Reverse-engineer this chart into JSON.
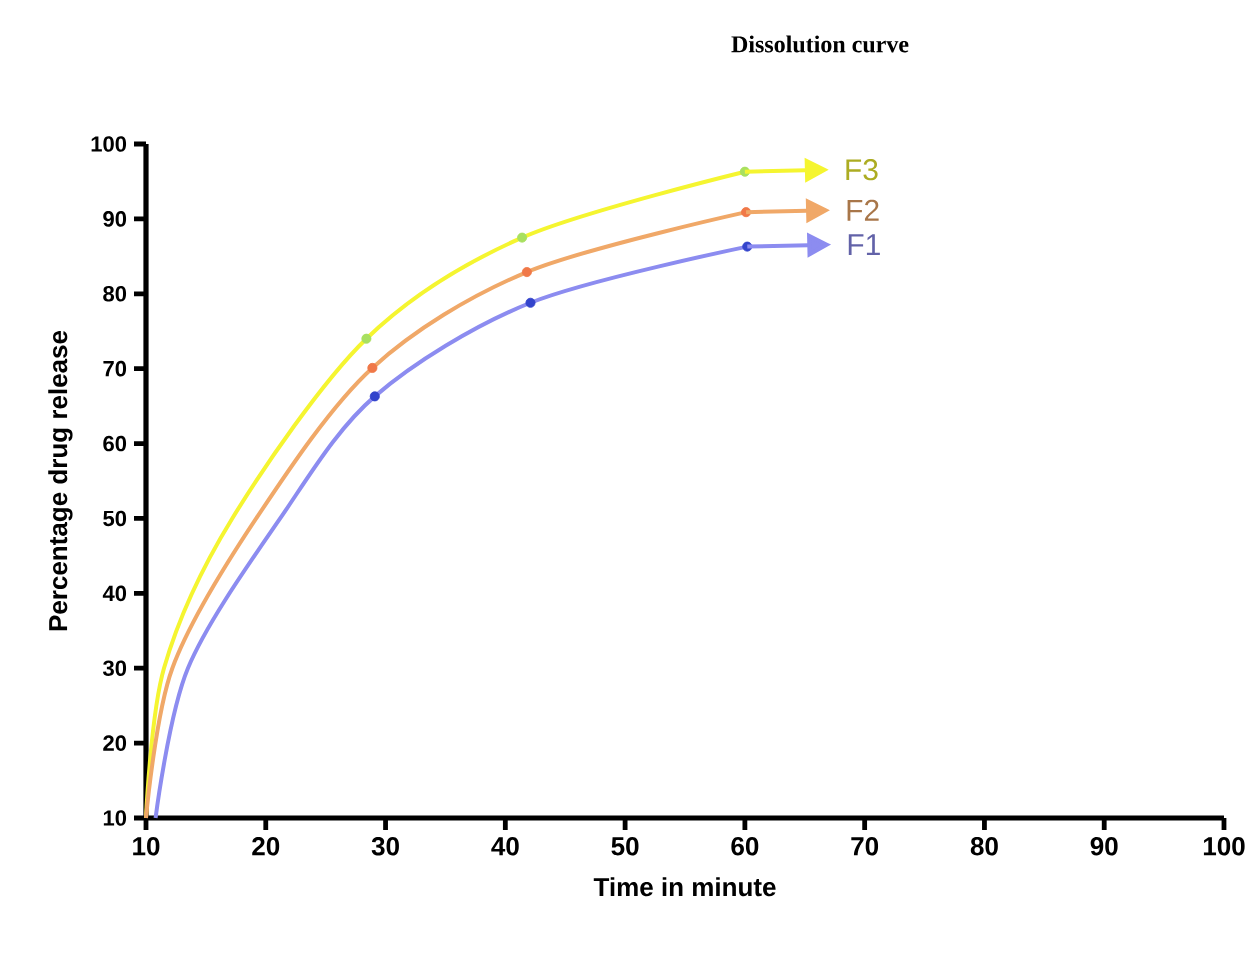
{
  "chart_data": {
    "type": "line",
    "title": "Dissolution curve",
    "xlabel": "Time in minute",
    "ylabel": "Percentage drug release",
    "xlim": [
      10,
      100
    ],
    "ylim": [
      10,
      100
    ],
    "xticks": [
      10,
      20,
      30,
      40,
      50,
      60,
      70,
      80,
      90,
      100
    ],
    "yticks": [
      10,
      20,
      30,
      40,
      50,
      60,
      70,
      80,
      90,
      100
    ],
    "legend": "top right",
    "series": [
      {
        "name": "F3",
        "color": "#f5f530",
        "x": [
          10,
          11.5,
          17.2,
          28.4,
          41.4,
          60
        ],
        "values": [
          10,
          30,
          50,
          74,
          87.5,
          96.3
        ]
      },
      {
        "name": "F2",
        "color": "#f0a868",
        "x": [
          10,
          12.2,
          19.2,
          28.9,
          41.8,
          60.1
        ],
        "values": [
          10,
          30,
          50,
          70.1,
          82.9,
          90.9
        ]
      },
      {
        "name": "F1",
        "color": "#8c8cf0",
        "x": [
          10.8,
          13.5,
          21.2,
          29.1,
          42.1,
          60.2
        ],
        "values": [
          10,
          30,
          50,
          66.3,
          78.8,
          86.3
        ]
      },
      {
        "type": "scatter",
        "marker": "circle",
        "color": "#a8e060",
        "x": [
          28.4,
          41.4,
          60
        ],
        "values": [
          74,
          87.5,
          96.3
        ]
      },
      {
        "type": "scatter",
        "marker": "circle",
        "color": "#f07848",
        "x": [
          28.9,
          41.8,
          60.1
        ],
        "values": [
          70.1,
          82.9,
          90.9
        ]
      },
      {
        "type": "scatter",
        "marker": "circle",
        "color": "#3344cc",
        "x": [
          29.1,
          42.1,
          60.2
        ],
        "values": [
          66.3,
          78.8,
          86.3
        ]
      }
    ]
  }
}
